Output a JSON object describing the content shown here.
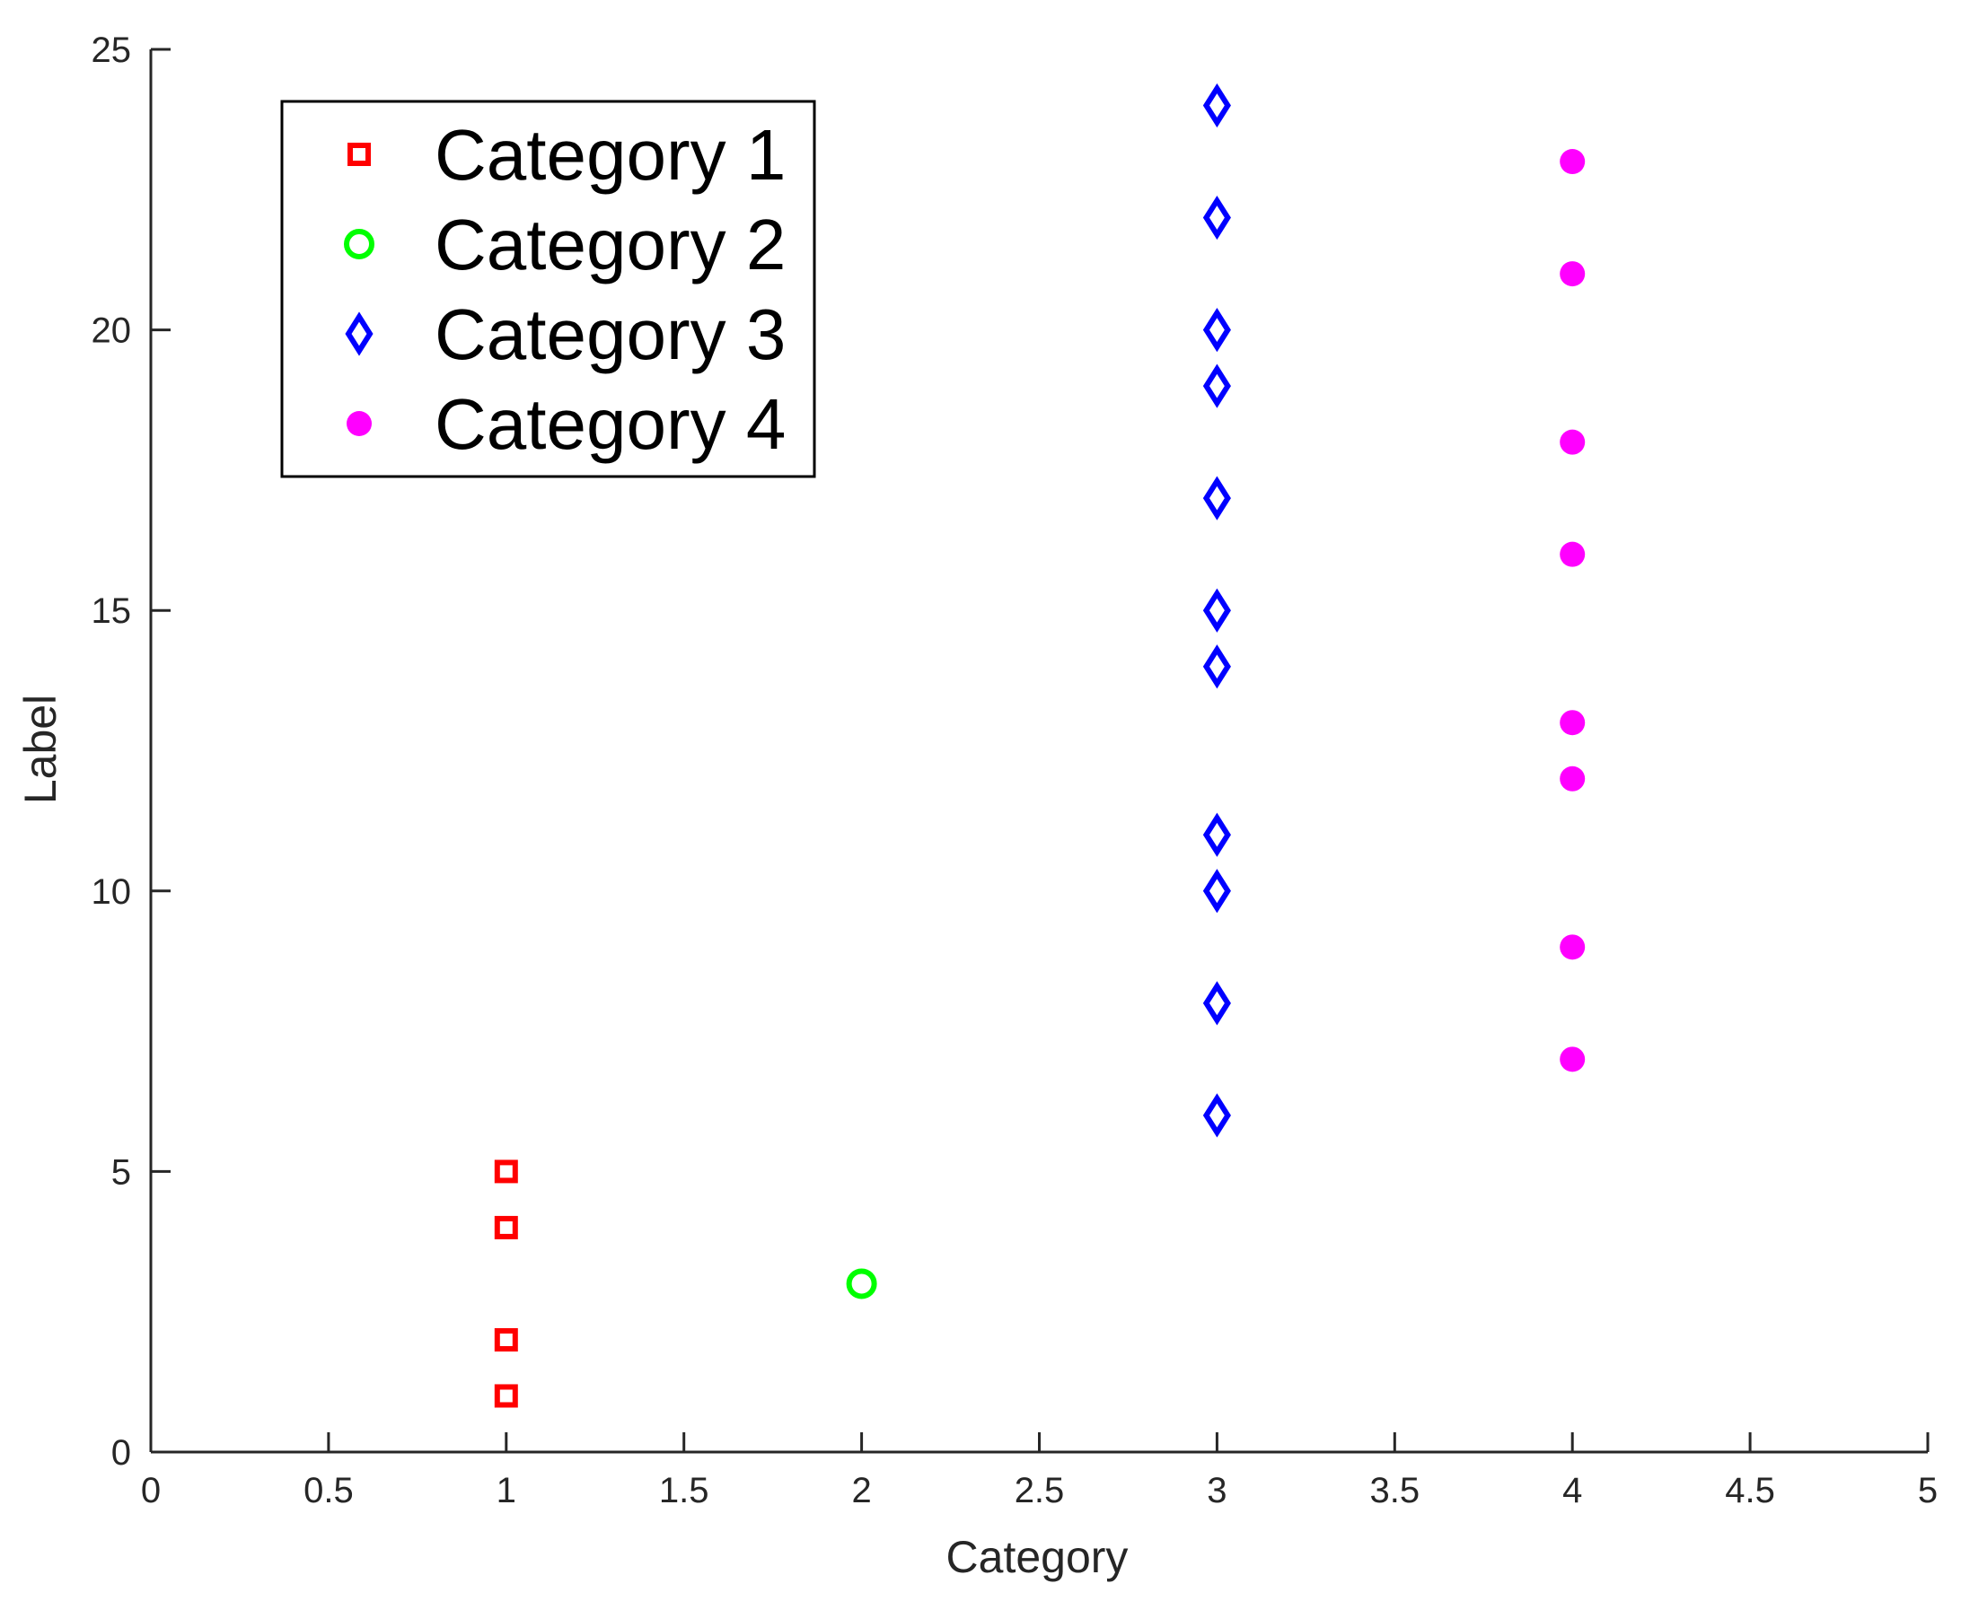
{
  "chart_data": {
    "type": "scatter",
    "title": "",
    "xlabel": "Category",
    "ylabel": "Label",
    "xlim": [
      0,
      5
    ],
    "ylim": [
      0,
      25
    ],
    "xticks": [
      "0",
      "0.5",
      "1",
      "1.5",
      "2",
      "2.5",
      "3",
      "3.5",
      "4",
      "4.5",
      "5"
    ],
    "yticks": [
      "0",
      "5",
      "10",
      "15",
      "20",
      "25"
    ],
    "grid": false,
    "legend_position": "top-left",
    "series": [
      {
        "name": "Category 1",
        "marker": "square",
        "color": "#ff0000",
        "x": [
          1,
          1,
          1,
          1
        ],
        "y": [
          1,
          2,
          4,
          5
        ]
      },
      {
        "name": "Category 2",
        "marker": "circle",
        "color": "#00ff00",
        "x": [
          2
        ],
        "y": [
          3
        ]
      },
      {
        "name": "Category 3",
        "marker": "diamond",
        "color": "#0000ff",
        "x": [
          3,
          3,
          3,
          3,
          3,
          3,
          3,
          3,
          3,
          3,
          3
        ],
        "y": [
          6,
          8,
          10,
          11,
          14,
          15,
          17,
          19,
          20,
          22,
          24
        ]
      },
      {
        "name": "Category 4",
        "marker": "filled-circle",
        "color": "#ff00ff",
        "x": [
          4,
          4,
          4,
          4,
          4,
          4,
          4,
          4
        ],
        "y": [
          7,
          9,
          12,
          13,
          16,
          18,
          21,
          23
        ]
      }
    ]
  }
}
